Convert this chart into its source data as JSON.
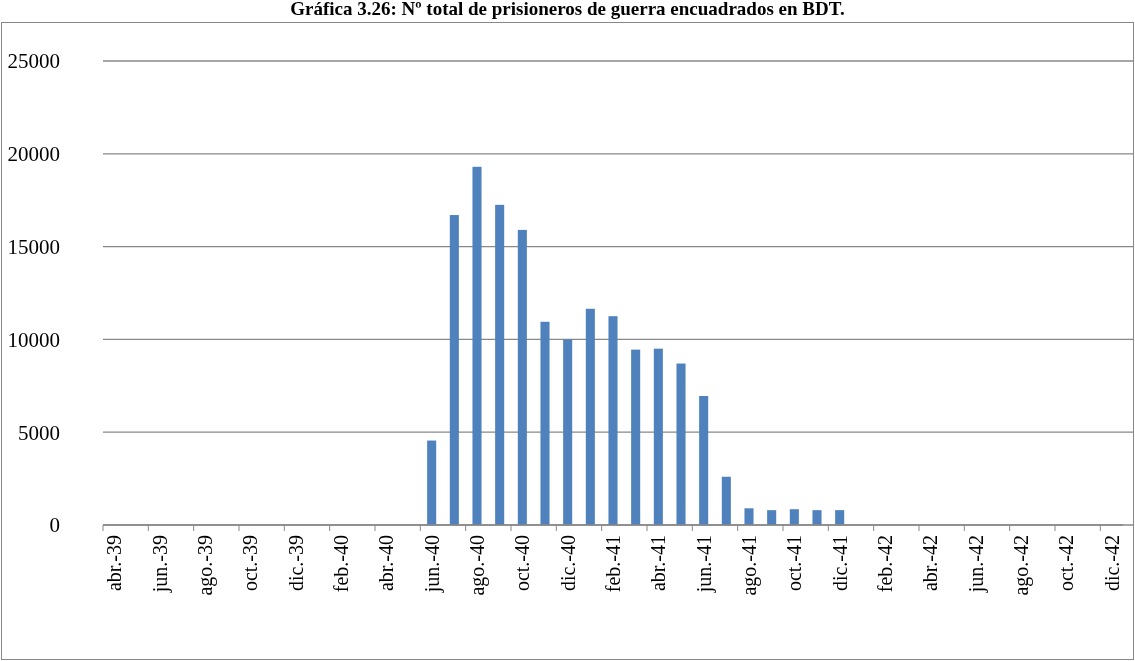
{
  "chart_data": {
    "type": "bar",
    "title": "Gráfica 3.26: Nº total de prisioneros de guerra encuadrados en BDT.",
    "categories": [
      "abr.-39",
      null,
      "jun.-39",
      null,
      "ago.-39",
      null,
      "oct.-39",
      null,
      "dic.-39",
      null,
      "feb.-40",
      null,
      "abr.-40",
      null,
      "jun.-40",
      null,
      "ago.-40",
      null,
      "oct.-40",
      null,
      "dic.-40",
      null,
      "feb.-41",
      null,
      "abr.-41",
      null,
      "jun.-41",
      null,
      "ago.-41",
      null,
      "oct.-41",
      null,
      "dic.-41",
      null,
      "feb.-42",
      null,
      "abr.-42",
      null,
      "jun.-42",
      null,
      "ago.-42",
      null,
      "oct.-42",
      null,
      "dic.-42"
    ],
    "values": [
      null,
      null,
      null,
      null,
      null,
      null,
      null,
      null,
      null,
      null,
      null,
      null,
      null,
      null,
      4550,
      16700,
      19300,
      17250,
      15900,
      10950,
      10000,
      11650,
      11250,
      9450,
      9500,
      8700,
      6950,
      2600,
      900,
      800,
      850,
      800,
      800,
      null,
      null,
      null,
      null,
      null,
      null,
      null,
      null,
      null,
      null,
      null,
      null
    ],
    "color": "#4f81bd",
    "ylim": [
      0,
      25000
    ],
    "yticks": [
      0,
      5000,
      10000,
      15000,
      20000,
      25000
    ],
    "grid": "y"
  }
}
